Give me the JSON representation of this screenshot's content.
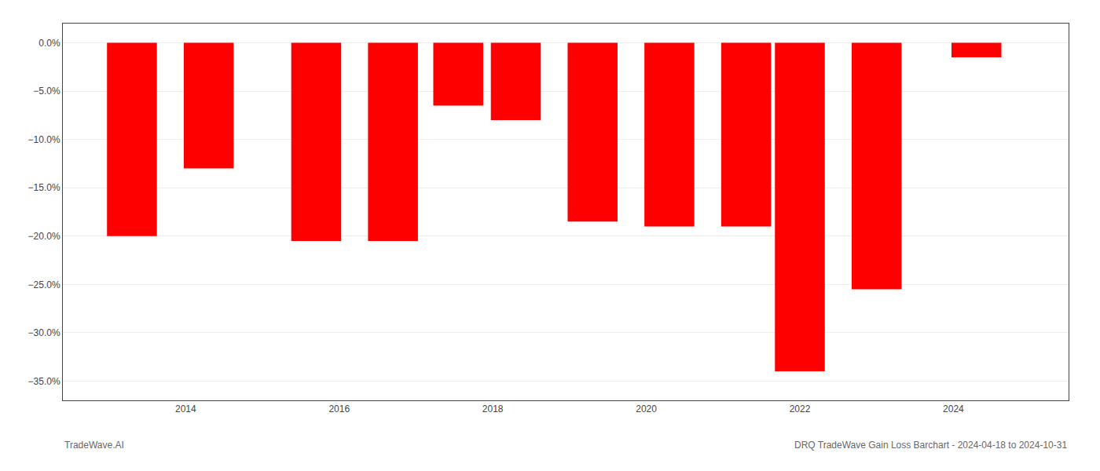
{
  "chart_data": {
    "type": "bar",
    "x": [
      2013.3,
      2014.3,
      2015.7,
      2016.7,
      2017.55,
      2018.3,
      2019.3,
      2020.3,
      2021.3,
      2022.0,
      2023.0,
      2024.3
    ],
    "values": [
      -20.0,
      -13.0,
      -20.5,
      -20.5,
      -6.5,
      -8.0,
      -18.5,
      -19.0,
      -19.0,
      -34.0,
      -25.5,
      -1.5
    ],
    "color": "#ff0000",
    "xlim": [
      2012.4,
      2025.5
    ],
    "xticks": [
      2014,
      2016,
      2018,
      2020,
      2022,
      2024
    ],
    "ylim": [
      -37.0,
      2.0
    ],
    "yticks": [
      {
        "value": 0.0,
        "label": "0.0%"
      },
      {
        "value": -5.0,
        "label": "−5.0%"
      },
      {
        "value": -10.0,
        "label": "−10.0%"
      },
      {
        "value": -15.0,
        "label": "−15.0%"
      },
      {
        "value": -20.0,
        "label": "−20.0%"
      },
      {
        "value": -25.0,
        "label": "−25.0%"
      },
      {
        "value": -30.0,
        "label": "−30.0%"
      },
      {
        "value": -35.0,
        "label": "−35.0%"
      }
    ],
    "grid": true,
    "annotations": [
      "TradeWave.AI",
      "DRQ TradeWave Gain Loss Barchart - 2024-04-18 to 2024-10-31"
    ]
  }
}
